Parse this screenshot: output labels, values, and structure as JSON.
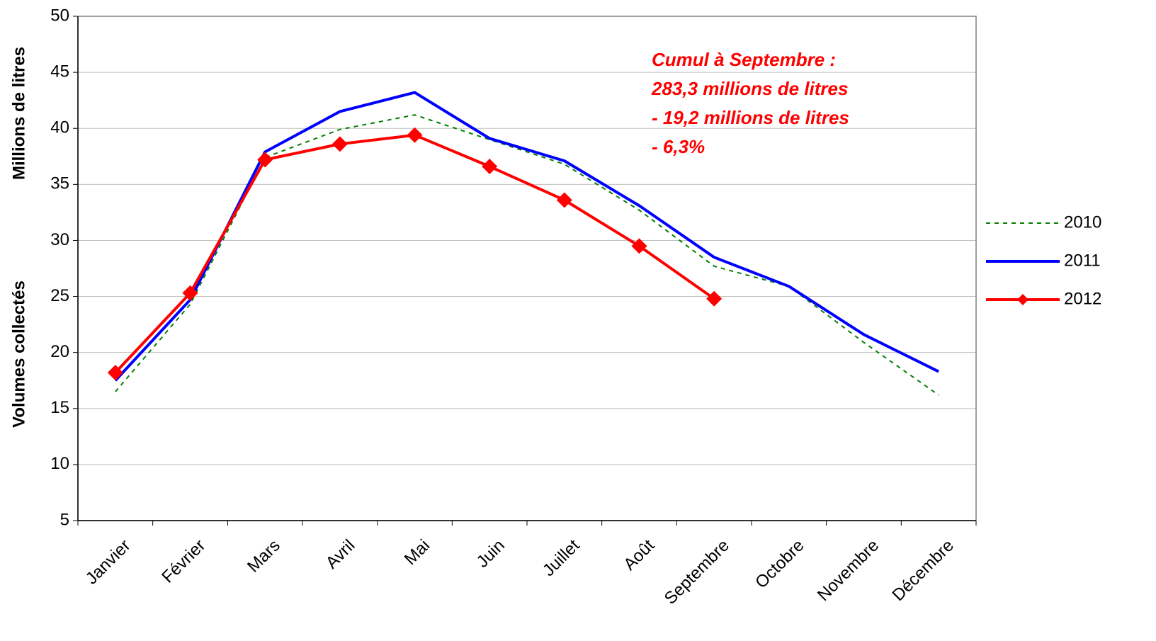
{
  "chart_data": {
    "type": "line",
    "ylabel": [
      "Volumes collectés",
      "Millions de litres"
    ],
    "annotation": [
      "Cumul à Septembre :",
      "283,3 millions de litres",
      "- 19,2 millions de litres",
      "- 6,3%"
    ],
    "annotation_color": "#ff0000",
    "categories": [
      "Janvier",
      "Février",
      "Mars",
      "Avril",
      "Mai",
      "Juin",
      "Juillet",
      "Août",
      "Septembre",
      "Octobre",
      "Novembre",
      "Décembre"
    ],
    "series": [
      {
        "name": "2010",
        "color": "#008000",
        "line_style": "dotted",
        "values": [
          16.5,
          24.3,
          37.4,
          39.9,
          41.2,
          39.0,
          36.8,
          32.7,
          27.7,
          25.9,
          20.9,
          16.2
        ]
      },
      {
        "name": "2011",
        "color": "#0000ff",
        "line_style": "solid",
        "values": [
          17.5,
          24.7,
          37.9,
          41.5,
          43.2,
          39.1,
          37.1,
          33.1,
          28.5,
          25.9,
          21.6,
          18.3
        ]
      },
      {
        "name": "2012",
        "color": "#ff0000",
        "line_style": "solid",
        "marker": "diamond",
        "values": [
          18.2,
          25.3,
          37.2,
          38.6,
          39.4,
          36.6,
          33.6,
          29.5,
          24.8,
          null,
          null,
          null
        ]
      }
    ],
    "ylim": [
      5,
      50
    ],
    "yticks": [
      5,
      10,
      15,
      20,
      25,
      30,
      35,
      40,
      45,
      50
    ],
    "grid": true,
    "legend": "right"
  }
}
